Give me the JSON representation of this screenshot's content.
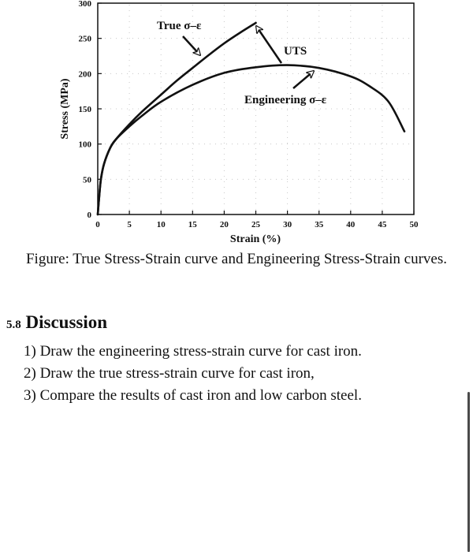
{
  "chart_data": {
    "type": "line",
    "xlabel": "Strain (%)",
    "ylabel": "Stress (MPa)",
    "xlim": [
      0,
      50
    ],
    "ylim": [
      0,
      300
    ],
    "xticks": [
      "0",
      "5",
      "10",
      "15",
      "20",
      "25",
      "30",
      "35",
      "40",
      "45",
      "50"
    ],
    "yticks": [
      "0",
      "50",
      "100",
      "150",
      "200",
      "250",
      "300"
    ],
    "series": [
      {
        "name": "True σ–ε",
        "x": [
          0,
          0.2,
          0.5,
          1,
          2,
          3,
          5,
          7,
          10,
          12.5,
          15,
          17.5,
          20,
          22.5,
          25
        ],
        "y": [
          0,
          22,
          50,
          72,
          95,
          108,
          128,
          146,
          170,
          190,
          208,
          226,
          243,
          258,
          272
        ]
      },
      {
        "name": "Engineering σ–ε",
        "x": [
          0,
          0.2,
          0.5,
          1,
          2,
          3,
          5,
          7,
          10,
          15,
          20,
          25,
          30,
          35,
          40,
          43,
          46,
          48.5
        ],
        "y": [
          0,
          22,
          50,
          72,
          95,
          108,
          125,
          140,
          160,
          184,
          201,
          209,
          212,
          208,
          196,
          182,
          160,
          118
        ]
      }
    ],
    "annotations": [
      "True σ–ε",
      "UTS",
      "Engineering σ–ε"
    ],
    "grid": false,
    "legend": "none"
  },
  "figure_caption": "Figure: True Stress-Strain curve and Engineering Stress-Strain curves.",
  "discussion": {
    "section_number": "5.8",
    "section_title": "Discussion",
    "items": [
      "1) Draw the engineering stress-strain curve for cast iron.",
      "2) Draw the true stress-strain curve for cast iron,",
      "3) Compare the results of cast iron and low carbon steel."
    ]
  }
}
